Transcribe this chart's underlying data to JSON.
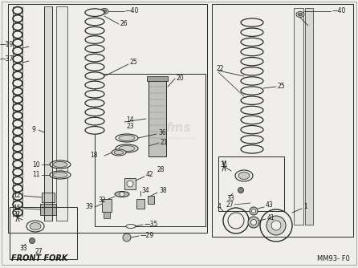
{
  "bg_color": "#f0eeeb",
  "line_color": "#2a2a2a",
  "text_color": "#1a1a1a",
  "fig_width": 4.46,
  "fig_height": 3.34,
  "dpi": 100,
  "bottom_left_label": "FRONT FORK",
  "bottom_right_label": "MM93- F0",
  "watermark": "fms",
  "watermark_sub": "fmsbike.com"
}
